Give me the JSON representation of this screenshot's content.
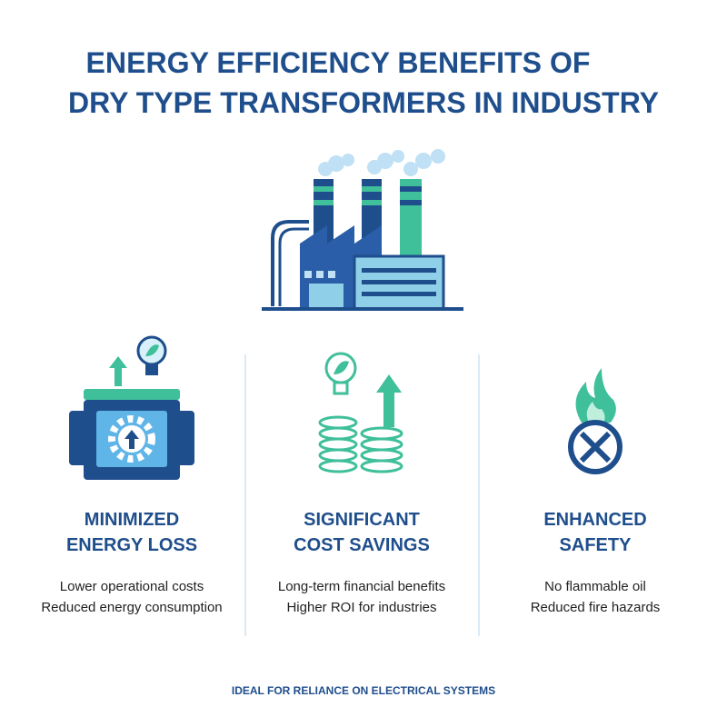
{
  "header": {
    "title_lines": [
      "ENERGY EFFICIENCY BENEFITS OF",
      "DRY TYPE TRANSFORMERS IN INDUSTRY"
    ]
  },
  "benefits": [
    {
      "heading_lines": [
        "MINIMIZED",
        "ENERGY LOSS"
      ],
      "points": [
        "Lower operational costs",
        "Reduced energy consumption"
      ]
    },
    {
      "heading_lines": [
        "SIGNIFICANT",
        "COST SAVINGS"
      ],
      "points": [
        "Long-term financial benefits",
        "Higher ROI for industries"
      ]
    },
    {
      "heading_lines": [
        "ENHANCED",
        "SAFETY"
      ],
      "points": [
        "No flammable oil",
        "Reduced fire hazards"
      ]
    }
  ],
  "footer": "IDEAL FOR RELIANCE ON ELECTRICAL SYSTEMS"
}
